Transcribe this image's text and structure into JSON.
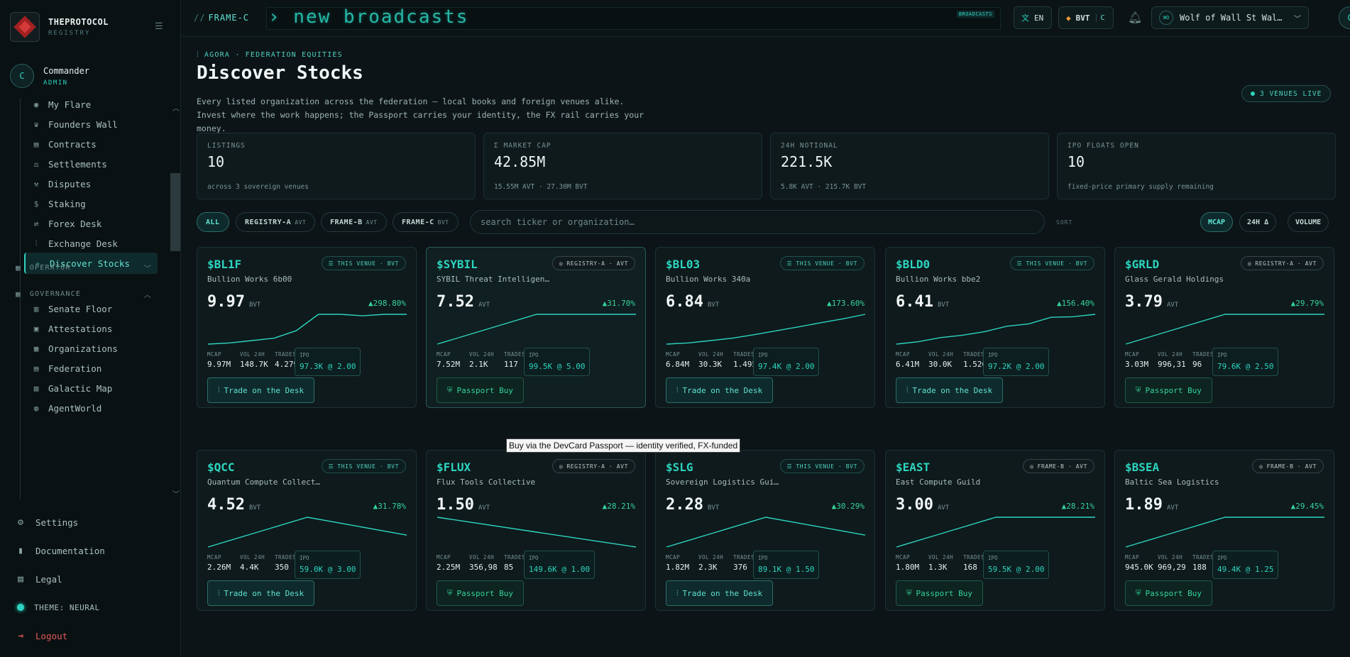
{
  "brand": {
    "name": "THEPROTOCOL",
    "sub": "REGISTRY"
  },
  "user": {
    "initial": "C",
    "name": "Commander",
    "role": "ADMIN"
  },
  "nav": {
    "items": [
      {
        "label": "My Flare",
        "icon": "flare-icon"
      },
      {
        "label": "Founders Wall",
        "icon": "award-icon"
      },
      {
        "label": "Contracts",
        "icon": "document-icon"
      },
      {
        "label": "Settlements",
        "icon": "scale-icon"
      },
      {
        "label": "Disputes",
        "icon": "gavel-icon"
      },
      {
        "label": "Staking",
        "icon": "dollar-icon"
      },
      {
        "label": "Forex Desk",
        "icon": "swap-icon"
      },
      {
        "label": "Exchange Desk",
        "icon": "sliders-icon"
      },
      {
        "label": "Discover Stocks",
        "icon": "compass-icon",
        "active": true
      }
    ],
    "operator": "OPERATOR",
    "governance": "GOVERNANCE",
    "governance_items": [
      {
        "label": "Senate Floor",
        "icon": "columns-icon"
      },
      {
        "label": "Attestations",
        "icon": "certificate-icon"
      },
      {
        "label": "Organizations",
        "icon": "building-icon"
      },
      {
        "label": "Federation",
        "icon": "landmark-icon"
      },
      {
        "label": "Galactic Map",
        "icon": "map-icon"
      },
      {
        "label": "AgentWorld",
        "icon": "globe-icon"
      }
    ],
    "settings": "Settings",
    "documentation": "Documentation",
    "legal": "Legal",
    "theme": "THEME: NEURAL",
    "logout": "Logout"
  },
  "header": {
    "frame": "FRAME-C",
    "ticker_text": "› new broadcasts",
    "ticker_tag": "BROADCASTS",
    "lang": "EN",
    "currency": "BVT",
    "currency_badge": "C",
    "account": "Wolf of Wall St Wal…",
    "account_initials": "WO",
    "avatar": "C"
  },
  "page": {
    "breadcrumb": "AGORA · FEDERATION EQUITIES",
    "title": "Discover Stocks",
    "description": "Every listed organization across the federation — local books and foreign venues alike. Invest where the work happens; the Passport carries your identity, the FX rail carries your money.",
    "live": "3 VENUES LIVE"
  },
  "stats": [
    {
      "label": "LISTINGS",
      "value": "10",
      "sub": "across 3 sovereign venues"
    },
    {
      "label": "Σ MARKET CAP",
      "value": "42.85M",
      "sub": "15.55M AVT · 27.30M BVT"
    },
    {
      "label": "24H NOTIONAL",
      "value": "221.5K",
      "sub": "5.8K AVT · 215.7K BVT"
    },
    {
      "label": "IPO FLOATS OPEN",
      "value": "10",
      "sub": "fixed-price primary supply remaining"
    }
  ],
  "filters": [
    {
      "label": "ALL",
      "sub": ""
    },
    {
      "label": "REGISTRY-A",
      "sub": "AVT"
    },
    {
      "label": "FRAME-B",
      "sub": "AVT"
    },
    {
      "label": "FRAME-C",
      "sub": "BVT"
    }
  ],
  "search": {
    "placeholder": "search ticker or organization…"
  },
  "sort": {
    "label": "SORT",
    "options": [
      "MCAP",
      "24H Δ",
      "VOLUME"
    ]
  },
  "metric_labels": {
    "mcap": "MCAP",
    "vol": "VOL 24H",
    "trades": "TRADES",
    "ipo": "IPO"
  },
  "actions": {
    "desk": "Trade on the Desk",
    "passport": "Passport Buy"
  },
  "cards": [
    {
      "ticker": "$BL1F",
      "badge": "THIS VENUE · BVT",
      "badge_type": "venue",
      "org": "Bullion Works 6b00",
      "price": "9.97",
      "unit": "BVT",
      "change": "▲298.80%",
      "mcap": "9.97M",
      "vol": "148.7K",
      "trades": "4.279",
      "ipo": "97.3K @ 2.00",
      "action": "desk",
      "spark": [
        0.0,
        0.04,
        0.12,
        0.2,
        0.45,
        1.0,
        1.0,
        0.95,
        1.0,
        1.0
      ]
    },
    {
      "ticker": "$SYBIL",
      "badge": "REGISTRY-A · AVT",
      "badge_type": "foreign",
      "org": "SYBIL Threat Intelligen…",
      "price": "7.52",
      "unit": "AVT",
      "change": "▲31.70%",
      "mcap": "7.52M",
      "vol": "2.1K",
      "trades": "117",
      "ipo": "99.5K @ 5.00",
      "action": "passport",
      "spark": [
        0.0,
        0.5,
        1.0,
        1.0,
        1.0
      ]
    },
    {
      "ticker": "$BL03",
      "badge": "THIS VENUE · BVT",
      "badge_type": "venue",
      "org": "Bullion Works 340a",
      "price": "6.84",
      "unit": "BVT",
      "change": "▲173.60%",
      "mcap": "6.84M",
      "vol": "30.3K",
      "trades": "1.495",
      "ipo": "97.4K @ 2.00",
      "action": "desk",
      "spark": [
        0.0,
        0.04,
        0.12,
        0.2,
        0.32,
        0.45,
        0.58,
        0.72,
        0.85,
        1.0
      ]
    },
    {
      "ticker": "$BLD0",
      "badge": "THIS VENUE · BVT",
      "badge_type": "venue",
      "org": "Bullion Works bbe2",
      "price": "6.41",
      "unit": "BVT",
      "change": "▲156.40%",
      "mcap": "6.41M",
      "vol": "30.0K",
      "trades": "1.526",
      "ipo": "97.2K @ 2.00",
      "action": "desk",
      "spark": [
        0.0,
        0.08,
        0.22,
        0.3,
        0.42,
        0.6,
        0.68,
        0.9,
        0.92,
        1.0
      ]
    },
    {
      "ticker": "$GRLD",
      "badge": "REGISTRY-A · AVT",
      "badge_type": "foreign",
      "org": "Glass Gerald Holdings",
      "price": "3.79",
      "unit": "AVT",
      "change": "▲29.79%",
      "mcap": "3.03M",
      "vol": "996,31",
      "trades": "96",
      "ipo": "79.6K @ 2.50",
      "action": "passport",
      "spark": [
        0.0,
        0.5,
        1.0,
        1.0,
        1.0
      ]
    },
    {
      "ticker": "$QCC",
      "badge": "THIS VENUE · BVT",
      "badge_type": "venue",
      "org": "Quantum Compute Collect…",
      "price": "4.52",
      "unit": "BVT",
      "change": "▲31.78%",
      "mcap": "2.26M",
      "vol": "4.4K",
      "trades": "350",
      "ipo": "59.0K @ 3.00",
      "action": "desk",
      "spark": [
        0.0,
        0.5,
        1.0,
        0.7,
        0.4
      ]
    },
    {
      "ticker": "$FLUX",
      "badge": "REGISTRY-A · AVT",
      "badge_type": "foreign",
      "org": "Flux Tools Collective",
      "price": "1.50",
      "unit": "AVT",
      "change": "▲28.21%",
      "mcap": "2.25M",
      "vol": "356,98",
      "trades": "85",
      "ipo": "149.6K @ 1.00",
      "action": "passport",
      "spark": [
        1.0,
        0.5,
        0.0
      ]
    },
    {
      "ticker": "$SLG",
      "badge": "THIS VENUE · BVT",
      "badge_type": "venue",
      "org": "Sovereign Logistics Gui…",
      "price": "2.28",
      "unit": "BVT",
      "change": "▲30.29%",
      "mcap": "1.82M",
      "vol": "2.3K",
      "trades": "376",
      "ipo": "89.1K @ 1.50",
      "action": "desk",
      "spark": [
        0.0,
        0.5,
        1.0,
        0.7,
        0.4
      ]
    },
    {
      "ticker": "$EAST",
      "badge": "FRAME-B · AVT",
      "badge_type": "foreign",
      "org": "East Compute Guild",
      "price": "3.00",
      "unit": "AVT",
      "change": "▲28.21%",
      "mcap": "1.80M",
      "vol": "1.3K",
      "trades": "168",
      "ipo": "59.5K @ 2.00",
      "action": "passport",
      "spark": [
        0.0,
        0.5,
        1.0,
        1.0,
        1.0
      ]
    },
    {
      "ticker": "$BSEA",
      "badge": "FRAME-B · AVT",
      "badge_type": "foreign",
      "org": "Baltic Sea Logistics",
      "price": "1.89",
      "unit": "AVT",
      "change": "▲29.45%",
      "mcap": "945.0K",
      "vol": "969,29",
      "trades": "188",
      "ipo": "49.4K @ 1.25",
      "action": "passport",
      "spark": [
        0.0,
        0.5,
        1.0,
        1.0,
        1.0
      ]
    }
  ],
  "tooltip": "Buy via the DevCard Passport — identity verified, FX-funded",
  "colors": {
    "accent": "#2dd4bf",
    "positive": "#34d399",
    "danger": "#e25858",
    "background": "#0c1417"
  }
}
